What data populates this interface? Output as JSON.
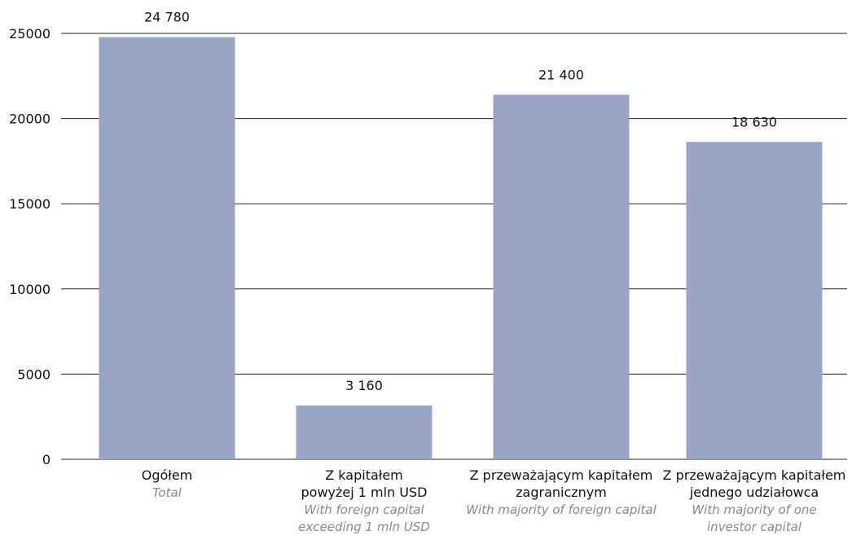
{
  "chart_data": {
    "type": "bar",
    "categories": [
      {
        "label_pl": [
          "Ogółem"
        ],
        "label_en": [
          "Total"
        ]
      },
      {
        "label_pl": [
          "Z kapitałem",
          "powyżej 1 mln USD"
        ],
        "label_en": [
          "With foreign capital",
          "exceeding 1 mln USD"
        ]
      },
      {
        "label_pl": [
          "Z przeważającym kapitałem",
          "zagranicznym"
        ],
        "label_en": [
          "With majority of foreign capital"
        ]
      },
      {
        "label_pl": [
          "Z przeważającym kapitałem",
          "jednego udziałowca"
        ],
        "label_en": [
          "With majority of one",
          "investor capital"
        ]
      }
    ],
    "values": [
      24780,
      3160,
      21400,
      18630
    ],
    "value_labels": [
      "24 780",
      "3 160",
      "21 400",
      "18 630"
    ],
    "ylim": [
      0,
      25000
    ],
    "yticks": [
      0,
      5000,
      10000,
      15000,
      20000,
      25000
    ],
    "ytick_labels": [
      "0",
      "5000",
      "10000",
      "15000",
      "20000",
      "25000"
    ],
    "grid": true,
    "bar_color": "#9aa4c6"
  }
}
